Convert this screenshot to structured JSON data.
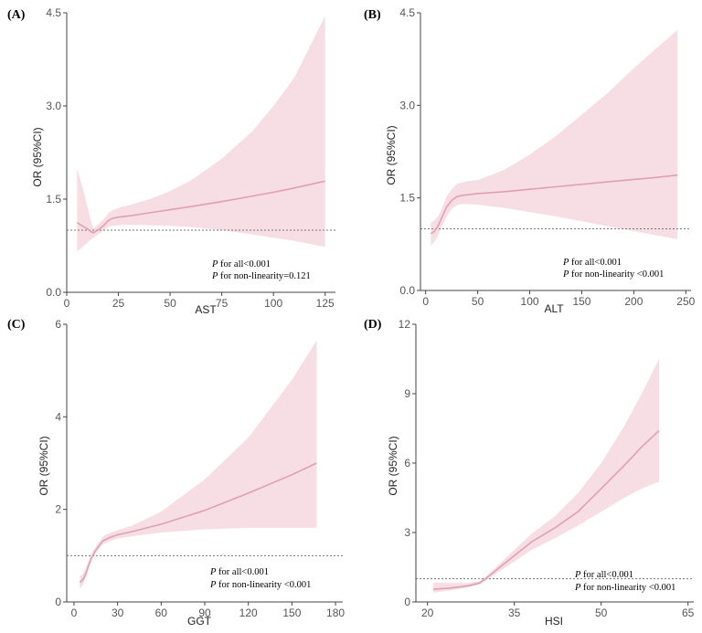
{
  "chart_data": [
    {
      "type": "line",
      "panel_label": "(A)",
      "xlabel": "AST",
      "ylabel": "OR (95%CI)",
      "xlim": [
        0,
        130
      ],
      "ylim": [
        0,
        4.5
      ],
      "xticks": [
        0,
        25,
        50,
        75,
        100,
        125
      ],
      "yticks": [
        0.0,
        1.5,
        3.0,
        4.5
      ],
      "ytick_labels": [
        "0.0",
        "1.5",
        "3.0",
        "4.5"
      ],
      "reference_line": 1.0,
      "x": [
        5,
        8,
        10,
        12,
        13,
        15,
        18,
        20,
        22,
        25,
        30,
        40,
        50,
        60,
        75,
        90,
        100,
        110,
        125
      ],
      "y": [
        1.12,
        1.06,
        1.02,
        0.97,
        0.96,
        1.0,
        1.08,
        1.15,
        1.19,
        1.21,
        1.23,
        1.28,
        1.33,
        1.38,
        1.46,
        1.55,
        1.61,
        1.68,
        1.79
      ],
      "lower": [
        0.66,
        0.74,
        0.8,
        0.86,
        0.88,
        0.93,
        1.0,
        1.05,
        1.07,
        1.08,
        1.09,
        1.08,
        1.07,
        1.05,
        1.0,
        0.93,
        0.88,
        0.83,
        0.73
      ],
      "upper": [
        2.0,
        1.65,
        1.38,
        1.12,
        1.03,
        1.09,
        1.18,
        1.27,
        1.32,
        1.36,
        1.4,
        1.5,
        1.63,
        1.8,
        2.15,
        2.6,
        3.0,
        3.45,
        4.45
      ],
      "annotations": [
        "for all<0.001",
        "for non-linearity=0.121"
      ]
    },
    {
      "type": "line",
      "panel_label": "(B)",
      "xlabel": "ALT",
      "ylabel": "OR (95%CI)",
      "xlim": [
        -5,
        255
      ],
      "ylim": [
        0,
        4.5
      ],
      "xticks": [
        0,
        50,
        100,
        150,
        200,
        250
      ],
      "yticks": [
        0.0,
        1.5,
        3.0,
        4.5
      ],
      "ytick_labels": [
        "0.0",
        "1.5",
        "3.0",
        "4.5"
      ],
      "reference_line": 1.0,
      "x": [
        5,
        8,
        12,
        16,
        20,
        25,
        30,
        35,
        40,
        50,
        75,
        100,
        125,
        150,
        175,
        200,
        220,
        242
      ],
      "y": [
        0.92,
        0.95,
        1.05,
        1.2,
        1.35,
        1.46,
        1.52,
        1.54,
        1.55,
        1.57,
        1.6,
        1.64,
        1.68,
        1.72,
        1.76,
        1.8,
        1.83,
        1.87
      ],
      "lower": [
        0.72,
        0.78,
        0.9,
        1.05,
        1.2,
        1.32,
        1.38,
        1.4,
        1.4,
        1.39,
        1.34,
        1.27,
        1.2,
        1.12,
        1.04,
        0.96,
        0.9,
        0.83
      ],
      "upper": [
        1.1,
        1.13,
        1.2,
        1.35,
        1.52,
        1.64,
        1.72,
        1.75,
        1.77,
        1.79,
        1.95,
        2.2,
        2.5,
        2.85,
        3.2,
        3.6,
        3.9,
        4.22
      ],
      "annotations": [
        "for all<0.001",
        "for non-linearity <0.001"
      ]
    },
    {
      "type": "line",
      "panel_label": "(C)",
      "xlabel": "GGT",
      "ylabel": "OR (95%CI)",
      "xlim": [
        -5,
        185
      ],
      "ylim": [
        0,
        6
      ],
      "xticks": [
        0,
        30,
        60,
        90,
        120,
        150,
        180
      ],
      "yticks": [
        0,
        2,
        4,
        6
      ],
      "ytick_labels": [
        "0",
        "2",
        "4",
        "6"
      ],
      "reference_line": 1.0,
      "x": [
        4,
        6,
        8,
        10,
        12,
        15,
        18,
        20,
        25,
        30,
        40,
        60,
        90,
        120,
        150,
        167
      ],
      "y": [
        0.42,
        0.48,
        0.6,
        0.78,
        0.95,
        1.12,
        1.25,
        1.32,
        1.4,
        1.45,
        1.52,
        1.68,
        1.98,
        2.35,
        2.75,
        3.0
      ],
      "lower": [
        0.28,
        0.36,
        0.5,
        0.7,
        0.88,
        1.05,
        1.18,
        1.25,
        1.32,
        1.37,
        1.42,
        1.5,
        1.57,
        1.6,
        1.6,
        1.6
      ],
      "upper": [
        0.55,
        0.6,
        0.72,
        0.88,
        1.05,
        1.2,
        1.33,
        1.42,
        1.5,
        1.55,
        1.65,
        1.95,
        2.65,
        3.55,
        4.8,
        5.65
      ],
      "annotations": [
        "for all<0.001",
        "for non-linearity <0.001"
      ]
    },
    {
      "type": "line",
      "panel_label": "(D)",
      "xlabel": "HSI",
      "ylabel": "OR (95%CI)",
      "xlim": [
        18,
        66
      ],
      "ylim": [
        0,
        12
      ],
      "xticks": [
        20,
        35,
        50,
        65
      ],
      "yticks": [
        0,
        3,
        6,
        9,
        12
      ],
      "ytick_labels": [
        "0",
        "3",
        "6",
        "9",
        "12"
      ],
      "reference_line": 1.0,
      "x": [
        21,
        24,
        27,
        29,
        30,
        32,
        35,
        38,
        42,
        46,
        50,
        54,
        57,
        60
      ],
      "y": [
        0.55,
        0.6,
        0.7,
        0.82,
        1.0,
        1.4,
        2.0,
        2.6,
        3.2,
        3.9,
        4.9,
        5.9,
        6.7,
        7.4
      ],
      "lower": [
        0.4,
        0.5,
        0.62,
        0.75,
        0.92,
        1.25,
        1.75,
        2.25,
        2.75,
        3.3,
        3.9,
        4.5,
        4.9,
        5.2
      ],
      "upper": [
        0.85,
        0.82,
        0.82,
        0.9,
        1.08,
        1.55,
        2.25,
        2.95,
        3.7,
        4.7,
        6.0,
        7.6,
        9.0,
        10.5
      ],
      "annotations": [
        "for all<0.001",
        "for non-linearity <0.001"
      ]
    }
  ],
  "annotation_italic": "P"
}
